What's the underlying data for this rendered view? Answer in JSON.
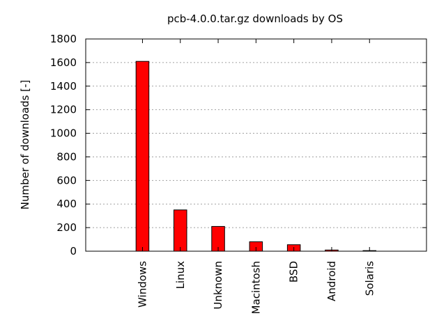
{
  "chart_data": {
    "type": "bar",
    "title": "pcb-4.0.0.tar.gz downloads by OS",
    "xlabel": "",
    "ylabel": "Number of downloads [-]",
    "categories": [
      "Windows",
      "Linux",
      "Unknown",
      "Macintosh",
      "BSD",
      "Android",
      "Solaris"
    ],
    "values": [
      1610,
      350,
      210,
      80,
      55,
      10,
      5
    ],
    "ylim": [
      0,
      1800
    ],
    "yticks": [
      0,
      200,
      400,
      600,
      800,
      1000,
      1200,
      1400,
      1600,
      1800
    ],
    "grid": true,
    "bar_color": "#ff0000",
    "bar_edge_color": "#000000"
  }
}
